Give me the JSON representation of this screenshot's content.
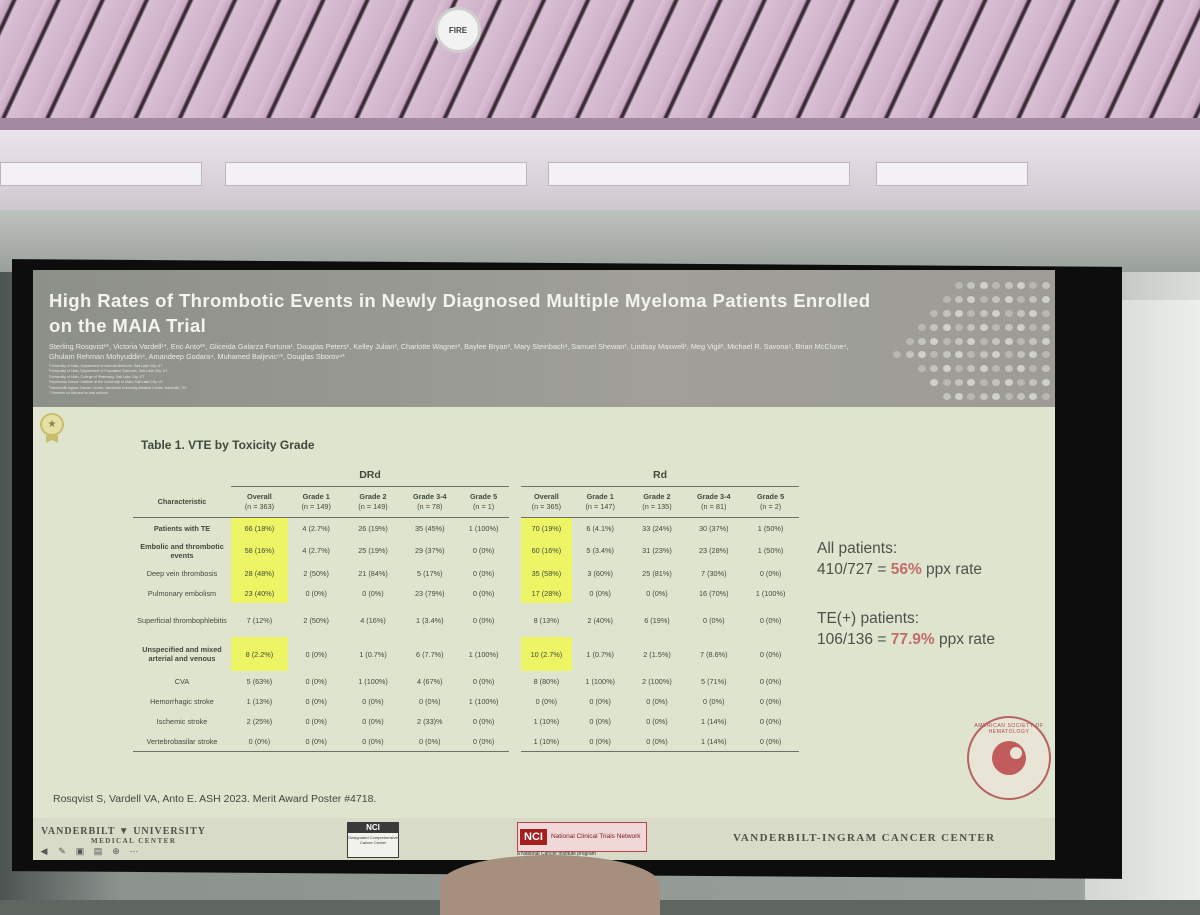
{
  "ceiling_device": {
    "label": "FIRE"
  },
  "slide": {
    "title": "High Rates of Thrombotic Events in Newly Diagnosed Multiple Myeloma Patients Enrolled on the MAIA Trial",
    "authors": "Sterling Rosqvist¹*, Victoria Vardell¹*, Eric Anto²*, Gliceida Galarza Fortuna¹, Douglas Peters¹, Kelley Julian³, Charlotte Wagner³, Baylee Bryan³, Mary Steinbach³, Samuel Shewan¹, Lindsay Maxwell¹, Meg Vigil³, Michael R. Savona⁵, Brian McClune⁴, Ghulam Rehman Mohyuddin⁴, Amandeep Godara⁴, Muhamed Baljevic⁵*, Douglas Sborov⁴*",
    "affiliations": [
      "¹University of Utah, Department of Internal Medicine, Salt Lake City, UT",
      "²University of Utah, Department of Population Sciences, Salt Lake City, UT",
      "³University of Utah, College of Pharmacy, Salt Lake City, UT",
      "⁴Huntsman Cancer Institute at the University of Utah, Salt Lake City, UT",
      "⁵Vanderbilt-Ingram Cancer Center, Vanderbilt University Medical Center, Nashville, TN",
      "* Denotes co-first and co-last authors"
    ],
    "table": {
      "title": "Table 1. VTE by Toxicity Grade",
      "groups": [
        "DRd",
        "Rd"
      ],
      "characteristic_label": "Characteristic",
      "columns": [
        {
          "name": "Overall",
          "n": "(n = 363)"
        },
        {
          "name": "Grade 1",
          "n": "(n = 149)"
        },
        {
          "name": "Grade 2",
          "n": "(n = 149)"
        },
        {
          "name": "Grade 3-4",
          "n": "(n = 78)"
        },
        {
          "name": "Grade 5",
          "n": "(n = 1)"
        },
        {
          "name": "Overall",
          "n": "(n = 365)"
        },
        {
          "name": "Grade 1",
          "n": "(n = 147)"
        },
        {
          "name": "Grade 2",
          "n": "(n = 135)"
        },
        {
          "name": "Grade 3-4",
          "n": "(n = 81)"
        },
        {
          "name": "Grade 5",
          "n": "(n = 2)"
        }
      ],
      "rows": [
        {
          "label": "Patients with TE",
          "bold": true,
          "height": "normal",
          "highlight": [
            0,
            5
          ],
          "cells": [
            "66 (18%)",
            "4 (2.7%)",
            "26 (19%)",
            "35 (45%)",
            "1 (100%)",
            "70 (19%)",
            "6 (4.1%)",
            "33 (24%)",
            "30 (37%)",
            "1 (50%)"
          ]
        },
        {
          "label": "Embolic and thrombotic events",
          "bold": true,
          "height": "mid",
          "highlight": [
            0,
            5
          ],
          "cells": [
            "58 (16%)",
            "4 (2.7%)",
            "25 (19%)",
            "29 (37%)",
            "0 (0%)",
            "60 (16%)",
            "5 (3.4%)",
            "31 (23%)",
            "23 (28%)",
            "1 (50%)"
          ]
        },
        {
          "label": "Deep vein thrombosis",
          "bold": false,
          "height": "normal",
          "highlight": [
            0,
            5
          ],
          "cells": [
            "28 (48%)",
            "2 (50%)",
            "21 (84%)",
            "5 (17%)",
            "0 (0%)",
            "35 (58%)",
            "3 (60%)",
            "25 (81%)",
            "7 (30%)",
            "0 (0%)"
          ]
        },
        {
          "label": "Pulmonary embolism",
          "bold": false,
          "height": "normal",
          "highlight": [
            0,
            5
          ],
          "cells": [
            "23 (40%)",
            "0 (0%)",
            "0 (0%)",
            "23 (79%)",
            "0 (0%)",
            "17 (28%)",
            "0 (0%)",
            "0 (0%)",
            "16 (70%)",
            "1 (100%)"
          ]
        },
        {
          "label": "Superficial thrombophlebitis",
          "bold": false,
          "height": "tall",
          "highlight": [],
          "cells": [
            "7 (12%)",
            "2 (50%)",
            "4 (16%)",
            "1 (3.4%)",
            "0 (0%)",
            "8 (13%)",
            "2 (40%)",
            "6 (19%)",
            "0 (0%)",
            "0 (0%)"
          ]
        },
        {
          "label": "Unspecified and mixed arterial and venous",
          "bold": true,
          "height": "tall",
          "highlight": [
            0,
            5
          ],
          "cells": [
            "8 (2.2%)",
            "0 (0%)",
            "1 (0.7%)",
            "6 (7.7%)",
            "1 (100%)",
            "10 (2.7%)",
            "1 (0.7%)",
            "2 (1.5%)",
            "7 (8.6%)",
            "0 (0%)"
          ]
        },
        {
          "label": "CVA",
          "bold": false,
          "height": "normal",
          "highlight": [],
          "cells": [
            "5 (63%)",
            "0 (0%)",
            "1 (100%)",
            "4 (67%)",
            "0 (0%)",
            "8 (80%)",
            "1 (100%)",
            "2 (100%)",
            "5 (71%)",
            "0 (0%)"
          ]
        },
        {
          "label": "Hemorrhagic stroke",
          "bold": false,
          "height": "normal",
          "highlight": [],
          "cells": [
            "1 (13%)",
            "0 (0%)",
            "0 (0%)",
            "0 (0%)",
            "1 (100%)",
            "0 (0%)",
            "0 (0%)",
            "0 (0%)",
            "0 (0%)",
            "0 (0%)"
          ]
        },
        {
          "label": "Ischemic stroke",
          "bold": false,
          "height": "normal",
          "highlight": [],
          "cells": [
            "2 (25%)",
            "0 (0%)",
            "0 (0%)",
            "2 (33)%",
            "0 (0%)",
            "1 (10%)",
            "0 (0%)",
            "0 (0%)",
            "1 (14%)",
            "0 (0%)"
          ]
        },
        {
          "label": "Vertebrobasilar stroke",
          "bold": false,
          "height": "normal",
          "highlight": [],
          "cells": [
            "0 (0%)",
            "0 (0%)",
            "0 (0%)",
            "0 (0%)",
            "0 (0%)",
            "1 (10%)",
            "0 (0%)",
            "0 (0%)",
            "1 (14%)",
            "0 (0%)"
          ]
        }
      ]
    },
    "stats": {
      "all_label": "All patients:",
      "all_value_prefix": "410/727 = ",
      "all_value_pct": "56%",
      "all_value_suffix": " ppx rate",
      "te_label": "TE(+) patients:",
      "te_value_prefix": "106/136 = ",
      "te_value_pct": "77.9%",
      "te_value_suffix": " ppx rate"
    },
    "seal_text": "AMERICAN SOCIETY OF HEMATOLOGY",
    "citation": "Rosqvist S, Vardell VA, Anto E. ASH 2023. Merit Award Poster #4718.",
    "footer": {
      "vu_line1": "VANDERBILT ▼ UNIVERSITY",
      "vu_line2": "MEDICAL CENTER",
      "nci1_tag": "NCI",
      "nci1_text": "Designated Comprehensive Cancer Center",
      "nci2_tag": "NCI",
      "nci2_text": "National Clinical Trials Network",
      "nci2_sub": "a National Cancer Institute program",
      "vicc": "VANDERBILT-INGRAM CANCER CENTER"
    },
    "toolbar_icons": [
      "back-icon",
      "pen-icon",
      "slides-icon",
      "captions-icon",
      "zoom-icon",
      "more-icon"
    ]
  },
  "colors": {
    "highlight": "#eef565",
    "accent_pct": "#c26b6b",
    "slide_bg": "#dfe4cf",
    "header_bg": "#9d9c96"
  }
}
